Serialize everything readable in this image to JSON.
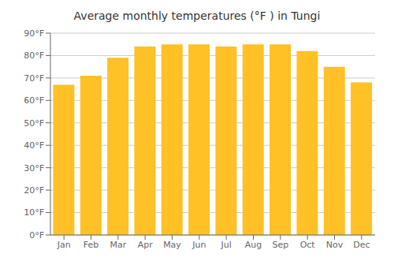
{
  "chart_data": {
    "type": "bar",
    "title": "Average monthly temperatures (°F ) in Tungi",
    "categories": [
      "Jan",
      "Feb",
      "Mar",
      "Apr",
      "May",
      "Jun",
      "Jul",
      "Aug",
      "Sep",
      "Oct",
      "Nov",
      "Dec"
    ],
    "values": [
      67,
      71,
      79,
      84,
      85,
      85,
      84,
      85,
      85,
      82,
      75,
      68
    ],
    "color": "#FFC125",
    "ylim": [
      0,
      90
    ],
    "yticks": [
      {
        "value": 0,
        "label": "0°F"
      },
      {
        "value": 10,
        "label": "10°F"
      },
      {
        "value": 20,
        "label": "20°F"
      },
      {
        "value": 30,
        "label": "30°F"
      },
      {
        "value": 40,
        "label": "40°F"
      },
      {
        "value": 50,
        "label": "50°F"
      },
      {
        "value": 60,
        "label": "60°F"
      },
      {
        "value": 70,
        "label": "70°F"
      },
      {
        "value": 80,
        "label": "80°F"
      },
      {
        "value": 90,
        "label": "90°F"
      }
    ],
    "grid": true
  }
}
